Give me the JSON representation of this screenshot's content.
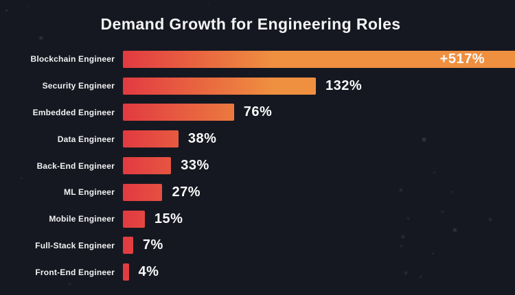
{
  "title": "Demand Growth for Engineering Roles",
  "colors": {
    "background": "#161821",
    "bar_gradient_start": "#e23a41",
    "bar_gradient_end": "#ef9040",
    "text": "#f4f4f5"
  },
  "chart_data": {
    "type": "bar",
    "orientation": "horizontal",
    "title": "Demand Growth for Engineering Roles",
    "categories": [
      "Blockchain Engineer",
      "Security Engineer",
      "Embedded Engineer",
      "Data Engineer",
      "Back-End Engineer",
      "ML Engineer",
      "Mobile Engineer",
      "Full-Stack Engineer",
      "Front-End Engineer"
    ],
    "values": [
      517,
      132,
      76,
      38,
      33,
      27,
      15,
      7,
      4
    ],
    "value_labels": [
      "+517%",
      "132%",
      "76%",
      "38%",
      "33%",
      "27%",
      "15%",
      "7%",
      "4%"
    ],
    "unit": "%",
    "grid": false,
    "legend": null,
    "axis_ticks": [],
    "note": "Largest bar (+517%) is clipped at the right edge of the image with its value label inside the bar; all other value labels sit to the right of their bars."
  }
}
